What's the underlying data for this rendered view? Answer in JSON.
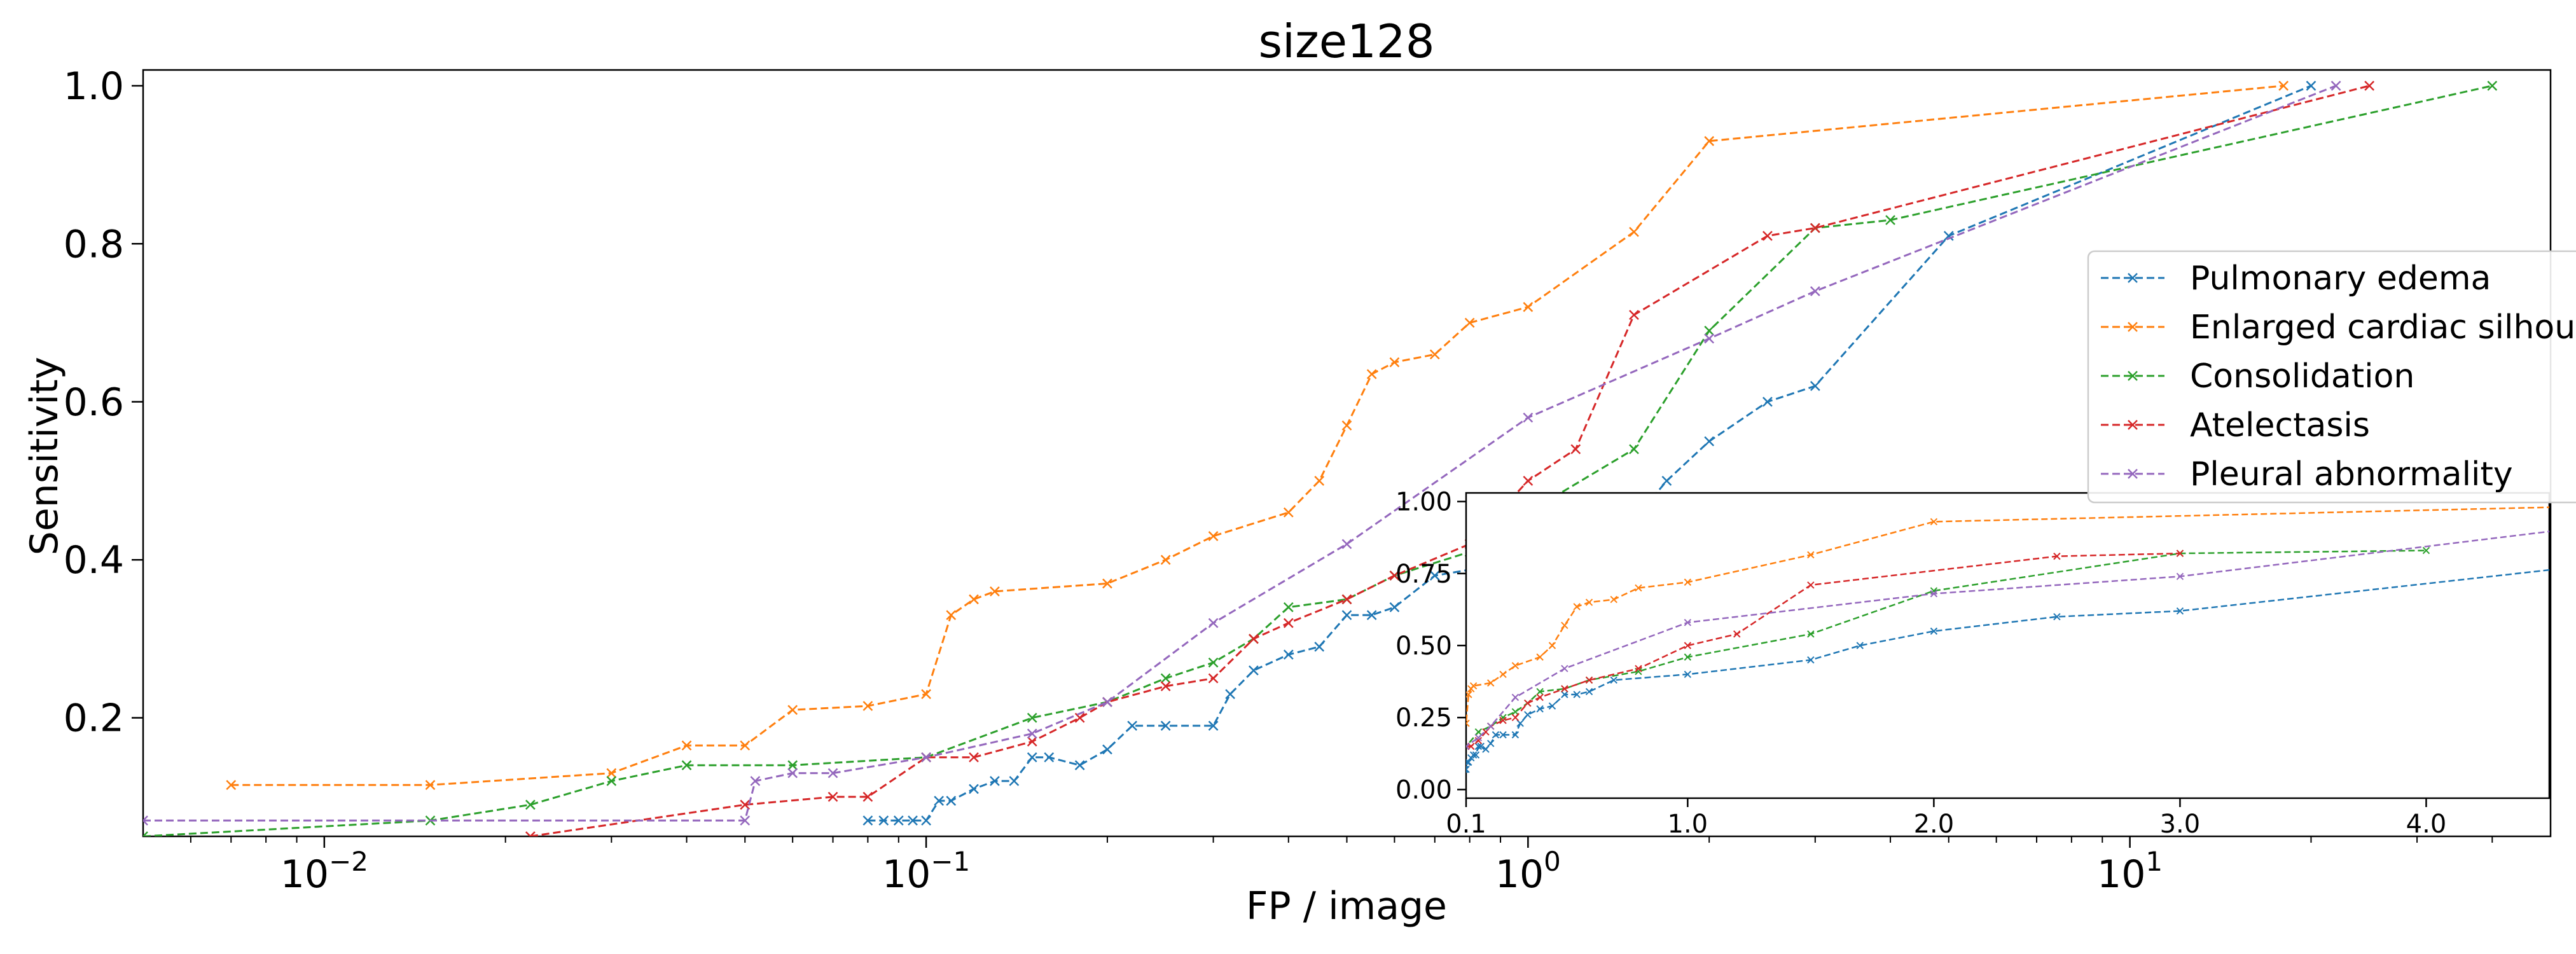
{
  "chart_data": {
    "type": "line",
    "title": "size128",
    "xlabel": "FP / image",
    "ylabel": "Sensitivity",
    "xscale": "log",
    "xlim": [
      0.005,
      50
    ],
    "ylim": [
      0.05,
      1.02
    ],
    "xticks": [
      {
        "value": 0.01,
        "base": "10",
        "exp": "−2"
      },
      {
        "value": 0.1,
        "base": "10",
        "exp": "−1"
      },
      {
        "value": 1,
        "base": "10",
        "exp": "0"
      },
      {
        "value": 10,
        "base": "10",
        "exp": "1"
      }
    ],
    "yticks": [
      "0.2",
      "0.4",
      "0.6",
      "0.8",
      "1.0"
    ],
    "legend_position": "right",
    "series": [
      {
        "name": "Pulmonary edema",
        "color": "#1f77b4",
        "x": [
          0.08,
          0.085,
          0.09,
          0.095,
          0.1,
          0.105,
          0.11,
          0.12,
          0.13,
          0.14,
          0.15,
          0.16,
          0.18,
          0.2,
          0.22,
          0.25,
          0.3,
          0.32,
          0.35,
          0.4,
          0.45,
          0.5,
          0.55,
          0.6,
          0.7,
          1.0,
          1.5,
          1.7,
          2.0,
          2.5,
          3.0,
          5.0,
          20.0
        ],
        "y": [
          0.07,
          0.07,
          0.07,
          0.07,
          0.07,
          0.095,
          0.095,
          0.11,
          0.12,
          0.12,
          0.15,
          0.15,
          0.14,
          0.16,
          0.19,
          0.19,
          0.19,
          0.23,
          0.26,
          0.28,
          0.29,
          0.33,
          0.33,
          0.34,
          0.38,
          0.4,
          0.45,
          0.5,
          0.55,
          0.6,
          0.62,
          0.81,
          1.0
        ]
      },
      {
        "name": "Enlarged cardiac silhouette",
        "color": "#ff7f0e",
        "x": [
          0.007,
          0.015,
          0.03,
          0.04,
          0.05,
          0.06,
          0.08,
          0.1,
          0.11,
          0.12,
          0.13,
          0.2,
          0.25,
          0.3,
          0.4,
          0.45,
          0.5,
          0.55,
          0.6,
          0.7,
          0.8,
          1.0,
          1.5,
          2.0,
          18.0
        ],
        "y": [
          0.115,
          0.115,
          0.13,
          0.165,
          0.165,
          0.21,
          0.215,
          0.23,
          0.33,
          0.35,
          0.36,
          0.37,
          0.4,
          0.43,
          0.46,
          0.5,
          0.57,
          0.635,
          0.65,
          0.66,
          0.7,
          0.72,
          0.815,
          0.93,
          1.0
        ]
      },
      {
        "name": "Consolidation",
        "color": "#2ca02c",
        "x": [
          0.005,
          0.015,
          0.022,
          0.03,
          0.04,
          0.06,
          0.1,
          0.15,
          0.2,
          0.25,
          0.3,
          0.35,
          0.4,
          0.5,
          0.6,
          0.8,
          1.0,
          1.5,
          2.0,
          3.0,
          4.0,
          40.0
        ],
        "y": [
          0.05,
          0.07,
          0.09,
          0.12,
          0.14,
          0.14,
          0.15,
          0.2,
          0.22,
          0.25,
          0.27,
          0.3,
          0.34,
          0.35,
          0.38,
          0.41,
          0.46,
          0.54,
          0.69,
          0.82,
          0.83,
          1.0
        ]
      },
      {
        "name": "Atelectasis",
        "color": "#d62728",
        "x": [
          0.022,
          0.05,
          0.07,
          0.08,
          0.1,
          0.12,
          0.15,
          0.18,
          0.2,
          0.25,
          0.3,
          0.35,
          0.4,
          0.5,
          0.6,
          0.8,
          1.0,
          1.2,
          1.5,
          2.5,
          3.0,
          25.0
        ],
        "y": [
          0.05,
          0.09,
          0.1,
          0.1,
          0.15,
          0.15,
          0.17,
          0.2,
          0.22,
          0.24,
          0.25,
          0.3,
          0.32,
          0.35,
          0.38,
          0.42,
          0.5,
          0.54,
          0.71,
          0.81,
          0.82,
          1.0
        ]
      },
      {
        "name": "Pleural abnormality",
        "color": "#9467bd",
        "x": [
          0.005,
          0.05,
          0.052,
          0.06,
          0.07,
          0.1,
          0.15,
          0.2,
          0.3,
          0.5,
          1.0,
          2.0,
          3.0,
          22.0
        ],
        "y": [
          0.07,
          0.07,
          0.12,
          0.13,
          0.13,
          0.15,
          0.18,
          0.22,
          0.32,
          0.42,
          0.58,
          0.68,
          0.74,
          1.0
        ]
      }
    ],
    "inset": {
      "xlim": [
        0.1,
        4.5
      ],
      "ylim": [
        -0.03,
        1.03
      ],
      "xticks": [
        "0.1",
        "1.0",
        "2.0",
        "3.0",
        "4.0"
      ],
      "yticks": [
        "0.00",
        "0.25",
        "0.50",
        "0.75",
        "1.00"
      ]
    }
  }
}
